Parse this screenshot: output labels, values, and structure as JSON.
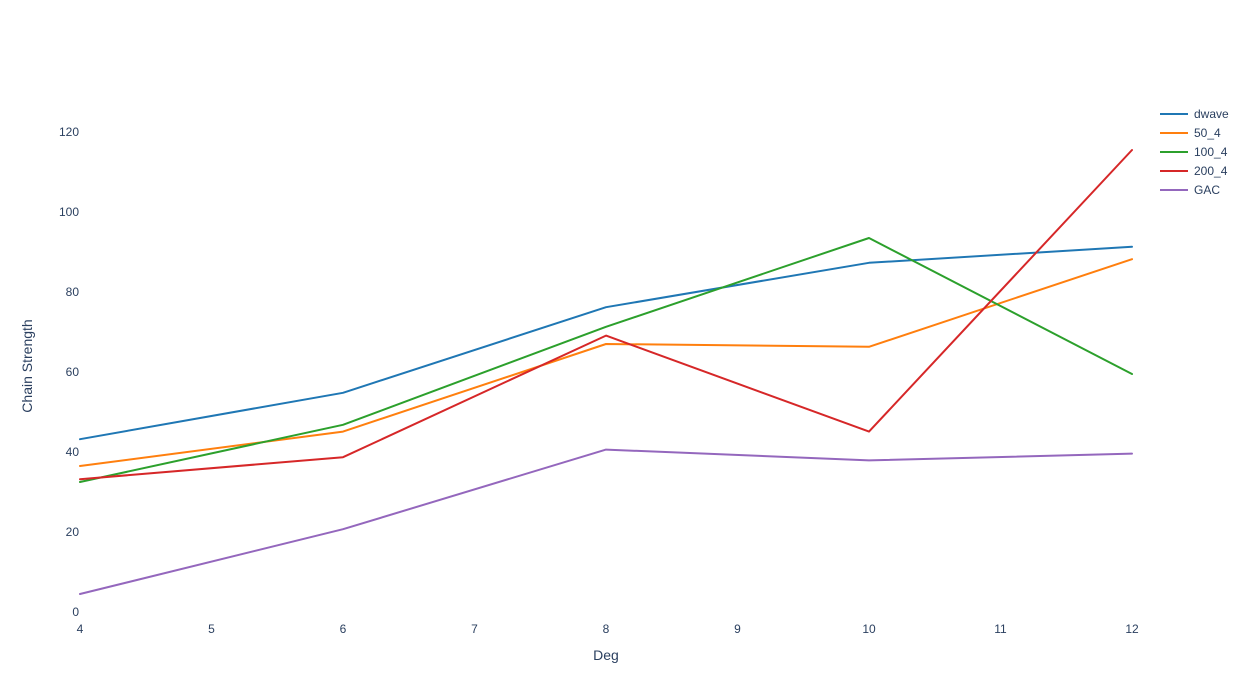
{
  "chart_data": {
    "type": "line",
    "title": "",
    "xlabel": "Deg",
    "ylabel": "Chain Strength",
    "x": [
      4,
      6,
      8,
      10,
      12
    ],
    "xlim": [
      4,
      12
    ],
    "ylim": [
      0,
      128
    ],
    "x_ticks": [
      4,
      5,
      6,
      7,
      8,
      9,
      10,
      11,
      12
    ],
    "y_ticks": [
      0,
      20,
      40,
      60,
      80,
      100,
      120
    ],
    "grid": false,
    "legend_position": "top-right",
    "series": [
      {
        "name": "dwave",
        "color": "#1f77b4",
        "values": [
          43.2,
          54.8,
          76.2,
          87.3,
          91.3
        ]
      },
      {
        "name": "50_4",
        "color": "#ff7f0e",
        "values": [
          36.5,
          45.1,
          67.0,
          66.3,
          88.2
        ]
      },
      {
        "name": "100_4",
        "color": "#2ca02c",
        "values": [
          32.5,
          46.8,
          71.3,
          93.5,
          59.5
        ]
      },
      {
        "name": "200_4",
        "color": "#d62728",
        "values": [
          33.2,
          38.7,
          69.1,
          45.1,
          115.5
        ]
      },
      {
        "name": "GAC",
        "color": "#9467bd",
        "values": [
          4.5,
          20.7,
          40.6,
          37.9,
          39.6
        ]
      }
    ]
  }
}
